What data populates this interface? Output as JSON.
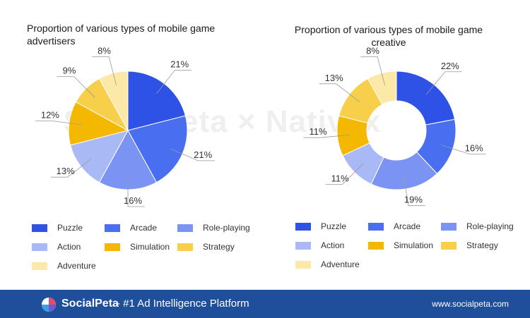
{
  "chart_data": [
    {
      "type": "pie",
      "title": "Proportion of various types of mobile game advertisers",
      "categories": [
        "Puzzle",
        "Arcade",
        "Role-playing",
        "Action",
        "Simulation",
        "Strategy",
        "Adventure"
      ],
      "values": [
        21,
        21,
        16,
        13,
        12,
        9,
        8
      ],
      "labels": [
        "21%",
        "21%",
        "16%",
        "13%",
        "12%",
        "9%",
        "8%"
      ],
      "colors": [
        "#2e52e6",
        "#4a6ef0",
        "#7b94f3",
        "#a9b9f5",
        "#f5b800",
        "#f7cf4a",
        "#fce9a8"
      ]
    },
    {
      "type": "pie",
      "title": "Proportion of various types of mobile game creative",
      "categories": [
        "Puzzle",
        "Arcade",
        "Role-playing",
        "Action",
        "Simulation",
        "Strategy",
        "Adventure"
      ],
      "values": [
        22,
        16,
        19,
        11,
        11,
        13,
        8
      ],
      "labels": [
        "22%",
        "16%",
        "19%",
        "11%",
        "11%",
        "13%",
        "8%"
      ],
      "colors": [
        "#2e52e6",
        "#4a6ef0",
        "#7b94f3",
        "#a9b9f5",
        "#f5b800",
        "#f7cf4a",
        "#fce9a8"
      ]
    }
  ],
  "watermark": "SocialPeta × Nativex",
  "footer": {
    "brand": "SocialPeta",
    "tagline": "- #1 Ad Intelligence Platform",
    "site": "www.socialpeta.com",
    "color": "#1f4f9a"
  }
}
